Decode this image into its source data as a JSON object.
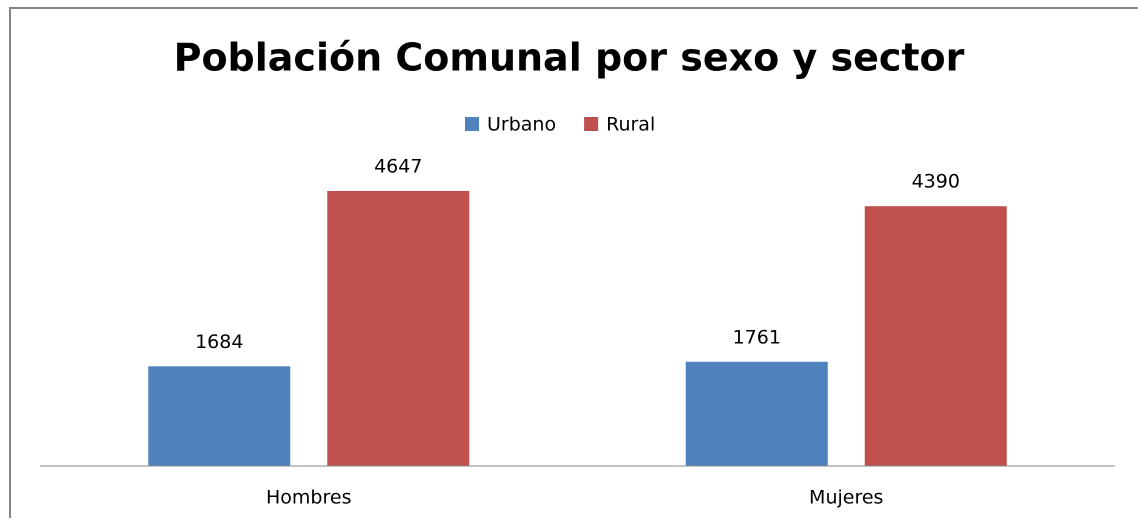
{
  "chart_data": {
    "type": "bar",
    "title": "Población Comunal por sexo y sector",
    "categories": [
      "Hombres",
      "Mujeres"
    ],
    "series": [
      {
        "name": "Urbano",
        "color": "#4f81bd",
        "values": [
          1684,
          1761
        ]
      },
      {
        "name": "Rural",
        "color": "#c0504d",
        "values": [
          4647,
          4390
        ]
      }
    ],
    "legend": "top"
  }
}
